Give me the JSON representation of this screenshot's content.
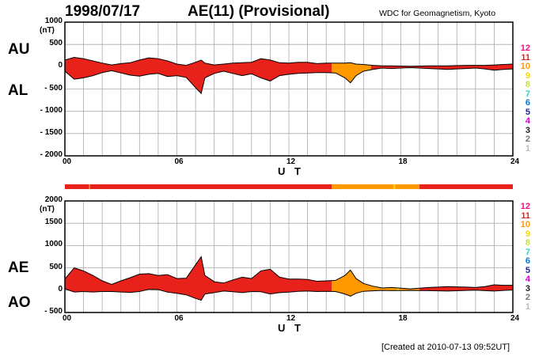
{
  "header": {
    "date": "1998/07/17",
    "title": "AE(11) (Provisional)",
    "source": "WDC for Geomagnetism, Kyoto",
    "created": "[Created at 2010-07-13 09:52UT]"
  },
  "legend": {
    "labels": [
      "12",
      "11",
      "10",
      "9",
      "8",
      "7",
      "6",
      "5",
      "4",
      "3",
      "2",
      "1"
    ],
    "colors": [
      "#e8117f",
      "#e8221b",
      "#ff9900",
      "#ffd400",
      "#c6e23c",
      "#33cccc",
      "#0077dd",
      "#2222aa",
      "#cc00cc",
      "#222222",
      "#777777",
      "#bbbbbb"
    ]
  },
  "chart_data": [
    {
      "type": "area",
      "name": "AU-AL panel",
      "labels_left": [
        "AU",
        "AL"
      ],
      "unit": "(nT)",
      "xlabel": "U T",
      "xlim": [
        0,
        24
      ],
      "x_ticks": [
        "00",
        "06",
        "12",
        "18",
        "24"
      ],
      "ylim": [
        -2000,
        1000
      ],
      "y_ticks": [
        "1000",
        "500",
        "0",
        "- 500",
        "- 1000",
        "- 1500",
        "- 2000"
      ],
      "y_tick_values": [
        1000,
        500,
        0,
        -500,
        -1000,
        -1500,
        -2000
      ],
      "grid": true,
      "station_colors": [
        {
          "x0": 0,
          "x1": 14.3,
          "color": "#e8221b"
        },
        {
          "x0": 14.3,
          "x1": 16.4,
          "color": "#ff9900"
        },
        {
          "x0": 16.4,
          "x1": 24,
          "color": "#e8221b"
        }
      ],
      "x": [
        0,
        0.5,
        1,
        1.5,
        2,
        2.5,
        3,
        3.5,
        4,
        4.5,
        5,
        5.5,
        6,
        6.5,
        7,
        7.3,
        7.5,
        8,
        8.5,
        9,
        9.5,
        10,
        10.5,
        11,
        11.5,
        12,
        12.5,
        13,
        13.5,
        14,
        14.5,
        15,
        15.3,
        15.6,
        16,
        16.5,
        17,
        17.5,
        18,
        18.5,
        19,
        19.5,
        20,
        20.5,
        21,
        21.5,
        22,
        22.5,
        23,
        23.5,
        24
      ],
      "AU": [
        150,
        210,
        180,
        130,
        80,
        40,
        70,
        90,
        150,
        200,
        180,
        130,
        60,
        30,
        100,
        150,
        80,
        40,
        60,
        80,
        90,
        100,
        180,
        150,
        90,
        80,
        100,
        100,
        70,
        80,
        80,
        80,
        90,
        60,
        50,
        30,
        20,
        20,
        15,
        10,
        15,
        20,
        20,
        20,
        25,
        30,
        30,
        30,
        40,
        50,
        60
      ],
      "AL": [
        -100,
        -280,
        -250,
        -200,
        -130,
        -90,
        -140,
        -190,
        -210,
        -170,
        -150,
        -220,
        -200,
        -240,
        -470,
        -600,
        -250,
        -150,
        -100,
        -150,
        -200,
        -160,
        -250,
        -320,
        -200,
        -170,
        -150,
        -140,
        -130,
        -130,
        -140,
        -250,
        -360,
        -200,
        -100,
        -60,
        -30,
        -40,
        -30,
        -20,
        -30,
        -40,
        -50,
        -60,
        -50,
        -40,
        -30,
        -50,
        -80,
        -60,
        -50
      ]
    },
    {
      "type": "area",
      "name": "AE-AO panel",
      "labels_left": [
        "AE",
        "AO"
      ],
      "unit": "(nT)",
      "xlabel": "U T",
      "xlim": [
        0,
        24
      ],
      "x_ticks": [
        "00",
        "06",
        "12",
        "18",
        "24"
      ],
      "ylim": [
        -500,
        2000
      ],
      "y_ticks": [
        "2000",
        "1500",
        "1000",
        "500",
        "0",
        "- 500"
      ],
      "y_tick_values": [
        2000,
        1500,
        1000,
        500,
        0,
        -500
      ],
      "grid": true,
      "station_colors": [
        {
          "x0": 0,
          "x1": 14.3,
          "color": "#e8221b"
        },
        {
          "x0": 14.3,
          "x1": 17.8,
          "color": "#ff9900"
        },
        {
          "x0": 17.8,
          "x1": 17.9,
          "color": "#ffd400"
        },
        {
          "x0": 17.9,
          "x1": 19.0,
          "color": "#ff9900"
        },
        {
          "x0": 19.0,
          "x1": 24,
          "color": "#e8221b"
        }
      ],
      "x": [
        0,
        0.5,
        1,
        1.5,
        2,
        2.5,
        3,
        3.5,
        4,
        4.5,
        5,
        5.5,
        6,
        6.5,
        7,
        7.3,
        7.5,
        8,
        8.5,
        9,
        9.5,
        10,
        10.5,
        11,
        11.5,
        12,
        12.5,
        13,
        13.5,
        14,
        14.5,
        15,
        15.3,
        15.6,
        16,
        16.5,
        17,
        17.5,
        18,
        18.5,
        19,
        19.5,
        20,
        20.5,
        21,
        21.5,
        22,
        22.5,
        23,
        23.5,
        24
      ],
      "AE": [
        250,
        500,
        430,
        330,
        210,
        130,
        210,
        280,
        360,
        370,
        330,
        350,
        260,
        270,
        570,
        750,
        330,
        190,
        160,
        230,
        290,
        260,
        430,
        470,
        290,
        250,
        250,
        240,
        200,
        210,
        220,
        330,
        450,
        260,
        150,
        90,
        50,
        60,
        45,
        30,
        45,
        60,
        70,
        80,
        75,
        70,
        60,
        80,
        120,
        110,
        110
      ],
      "AO": [
        30,
        -40,
        -30,
        -40,
        -30,
        -30,
        -40,
        -50,
        -30,
        20,
        15,
        -45,
        -70,
        -105,
        -185,
        -225,
        -85,
        -55,
        -20,
        -35,
        -55,
        -30,
        -35,
        -85,
        -55,
        -45,
        -25,
        -20,
        -30,
        -25,
        -30,
        -85,
        -135,
        -70,
        -25,
        -15,
        -5,
        -10,
        -8,
        -5,
        -8,
        -10,
        -15,
        -20,
        -12,
        -5,
        0,
        -10,
        -20,
        -5,
        5
      ]
    }
  ],
  "color_bar": [
    {
      "x0": 0,
      "x1": 1.3,
      "color": "#e8221b"
    },
    {
      "x0": 1.3,
      "x1": 1.35,
      "color": "#ff9900"
    },
    {
      "x0": 1.35,
      "x1": 14.3,
      "color": "#e8221b"
    },
    {
      "x0": 14.3,
      "x1": 17.6,
      "color": "#ff9900"
    },
    {
      "x0": 17.6,
      "x1": 17.7,
      "color": "#ffd400"
    },
    {
      "x0": 17.7,
      "x1": 19.0,
      "color": "#ff9900"
    },
    {
      "x0": 19.0,
      "x1": 24,
      "color": "#e8221b"
    }
  ]
}
